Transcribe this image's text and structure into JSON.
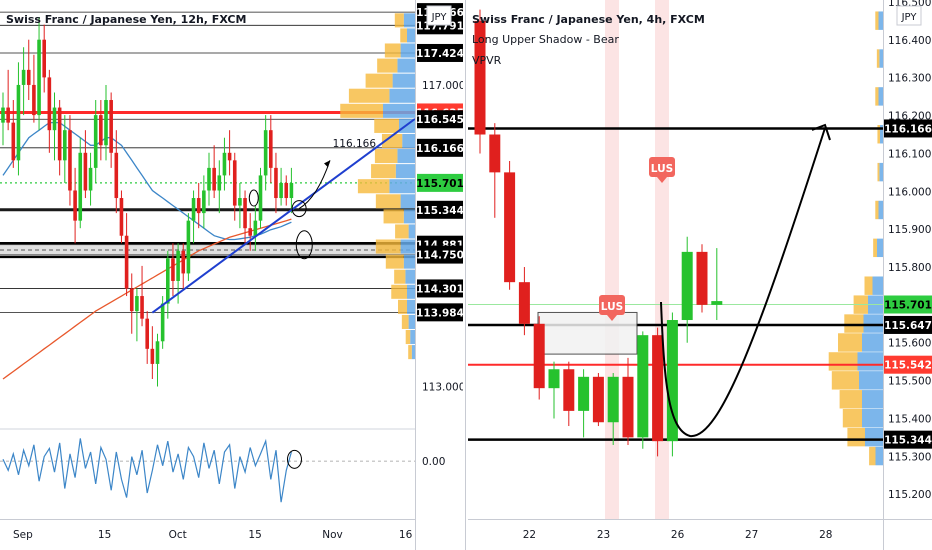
{
  "left": {
    "title": "Swiss Franc / Japanese Yen, 12h, FXCM",
    "currency": "JPY",
    "price_range": [
      112.45,
      118.1
    ],
    "osc_range": [
      -0.58,
      0.32
    ],
    "x_ticks": [
      {
        "label": "Sep",
        "i": 3
      },
      {
        "label": "15",
        "i": 22
      },
      {
        "label": "Oct",
        "i": 39
      },
      {
        "label": "15",
        "i": 57
      },
      {
        "label": "Nov",
        "i": 75
      },
      {
        "label": "16",
        "i": 92
      }
    ],
    "axis_prices": [
      "117.000",
      "113.000"
    ],
    "osc_tick": "0.00",
    "level_tags": [
      {
        "label": "117.966",
        "style": "black"
      },
      {
        "label": "117.791",
        "style": "black"
      },
      {
        "label": "117.424",
        "style": "black"
      },
      {
        "label": "116.635",
        "style": "red"
      },
      {
        "label": "116.545",
        "style": "black"
      },
      {
        "label": "116.166",
        "style": "black"
      },
      {
        "label": "115.701",
        "style": "green"
      },
      {
        "label": "115.344",
        "style": "black"
      },
      {
        "label": "114.881",
        "style": "black"
      },
      {
        "label": "114.750",
        "style": "black"
      },
      {
        "label": "114.301",
        "style": "black"
      },
      {
        "label": "113.984",
        "style": "black"
      }
    ],
    "annotation_text": "116.166"
  },
  "right": {
    "title": "Swiss Franc / Japanese Yen, 4h, FXCM",
    "indicator_1": "Long Upper Shadow - Bear",
    "indicator_2": "VPVR",
    "currency": "JPY",
    "price_range": [
      115.145,
      116.5
    ],
    "x_ticks": [
      {
        "label": "22",
        "i": 4
      },
      {
        "label": "23",
        "i": 10
      },
      {
        "label": "26",
        "i": 16
      },
      {
        "label": "27",
        "i": 22
      },
      {
        "label": "28",
        "i": 28
      }
    ],
    "axis_prices": [
      "116.500",
      "116.400",
      "116.300",
      "116.200",
      "116.100",
      "116.000",
      "115.900",
      "115.800",
      "115.600",
      "115.500",
      "115.400",
      "115.300",
      "115.200"
    ],
    "level_tags": [
      {
        "label": "116.166",
        "style": "black"
      },
      {
        "label": "115.701",
        "style": "green"
      },
      {
        "label": "115.647",
        "style": "black"
      },
      {
        "label": "115.542",
        "style": "red"
      },
      {
        "label": "115.344",
        "style": "black"
      }
    ],
    "signals": [
      {
        "label": "LUS",
        "i": 11.8
      },
      {
        "label": "LUS",
        "i": 9.8
      }
    ],
    "colors": {
      "up": "#26c22e",
      "down": "#e0201e",
      "blue_line": "#1f3fcf",
      "red_line": "#ff2a2a",
      "green_line": "#2ecc40",
      "vp_up": "#65a9e8",
      "vp_down": "#f6b93b",
      "signal": "#f2665e"
    }
  },
  "chart_data": [
    {
      "type": "candlestick",
      "title": "Swiss Franc / Japanese Yen, 12h, FXCM",
      "xlabel": "",
      "ylabel": "JPY",
      "ylim": [
        112.45,
        118.1
      ],
      "candles": [
        [
          116.5,
          116.9,
          116.2,
          116.7
        ],
        [
          116.7,
          117.2,
          116.4,
          116.5
        ],
        [
          116.5,
          116.8,
          115.9,
          116.0
        ],
        [
          116.0,
          117.3,
          115.8,
          117.0
        ],
        [
          117.0,
          117.5,
          116.6,
          117.2
        ],
        [
          117.2,
          117.6,
          116.8,
          117.0
        ],
        [
          117.0,
          117.4,
          116.5,
          116.6
        ],
        [
          116.6,
          117.9,
          116.4,
          117.6
        ],
        [
          117.6,
          117.8,
          116.9,
          117.1
        ],
        [
          117.1,
          117.2,
          116.1,
          116.4
        ],
        [
          116.4,
          116.9,
          116.0,
          116.7
        ],
        [
          116.7,
          116.8,
          115.8,
          116.0
        ],
        [
          116.0,
          116.6,
          115.7,
          116.4
        ],
        [
          116.4,
          116.6,
          115.4,
          115.6
        ],
        [
          115.6,
          115.9,
          114.9,
          115.2
        ],
        [
          115.2,
          116.3,
          115.1,
          116.1
        ],
        [
          116.1,
          116.4,
          115.5,
          115.6
        ],
        [
          115.6,
          116.1,
          115.4,
          115.9
        ],
        [
          115.9,
          116.8,
          115.7,
          116.6
        ],
        [
          116.6,
          116.8,
          116.0,
          116.2
        ],
        [
          116.2,
          117.0,
          116.0,
          116.8
        ],
        [
          116.8,
          116.9,
          115.9,
          116.1
        ],
        [
          116.1,
          116.4,
          115.3,
          115.5
        ],
        [
          115.5,
          115.6,
          114.9,
          115.0
        ],
        [
          115.0,
          115.3,
          114.2,
          114.3
        ],
        [
          114.3,
          114.5,
          113.7,
          114.0
        ],
        [
          114.0,
          114.3,
          113.6,
          114.2
        ],
        [
          114.2,
          114.6,
          113.8,
          113.9
        ],
        [
          113.9,
          114.0,
          113.3,
          113.5
        ],
        [
          113.5,
          113.8,
          113.1,
          113.3
        ],
        [
          113.3,
          113.7,
          113.0,
          113.6
        ],
        [
          113.6,
          114.2,
          113.5,
          114.1
        ],
        [
          114.1,
          114.8,
          113.9,
          114.7
        ],
        [
          114.7,
          114.9,
          114.2,
          114.4
        ],
        [
          114.4,
          114.9,
          114.1,
          114.8
        ],
        [
          114.8,
          114.9,
          114.3,
          114.5
        ],
        [
          114.5,
          115.3,
          114.4,
          115.2
        ],
        [
          115.2,
          115.6,
          114.9,
          115.5
        ],
        [
          115.5,
          115.7,
          115.1,
          115.3
        ],
        [
          115.3,
          115.8,
          115.1,
          115.6
        ],
        [
          115.6,
          116.1,
          115.4,
          115.9
        ],
        [
          115.9,
          116.2,
          115.5,
          115.6
        ],
        [
          115.6,
          116.0,
          115.3,
          115.8
        ],
        [
          115.8,
          116.3,
          115.6,
          116.1
        ],
        [
          116.1,
          116.4,
          115.8,
          116.0
        ],
        [
          116.0,
          116.1,
          115.2,
          115.4
        ],
        [
          115.4,
          115.7,
          115.1,
          115.5
        ],
        [
          115.5,
          115.6,
          114.9,
          115.1
        ],
        [
          115.1,
          115.3,
          114.8,
          115.0
        ],
        [
          115.0,
          115.4,
          114.8,
          115.2
        ],
        [
          115.2,
          115.9,
          115.1,
          115.8
        ],
        [
          115.8,
          116.6,
          115.6,
          116.4
        ],
        [
          116.4,
          116.6,
          115.7,
          115.9
        ],
        [
          115.9,
          116.1,
          115.3,
          115.5
        ],
        [
          115.5,
          115.9,
          115.4,
          115.7
        ],
        [
          115.7,
          115.8,
          115.4,
          115.5
        ],
        [
          115.5,
          115.9,
          115.3,
          115.7
        ]
      ],
      "series": [
        {
          "name": "",
          "values": [
            115.8,
            115.9,
            116.0,
            116.1,
            116.2,
            116.3,
            116.35,
            116.4,
            116.45,
            116.5,
            116.5,
            116.5,
            116.45,
            116.4,
            116.35,
            116.3,
            116.25,
            116.2,
            116.2,
            116.25,
            116.3,
            116.3,
            116.25,
            116.2,
            116.1,
            116.0,
            115.9,
            115.8,
            115.7,
            115.6,
            115.55,
            115.5,
            115.45,
            115.4,
            115.35,
            115.3,
            115.25,
            115.2,
            115.15,
            115.1,
            115.05,
            115.0,
            114.98,
            114.96,
            114.95,
            114.95,
            114.96,
            114.97,
            114.98,
            115.0,
            115.02,
            115.05,
            115.08,
            115.1,
            115.12,
            115.15,
            115.18
          ]
        },
        {
          "name": "",
          "values": [
            113.1,
            113.15,
            113.2,
            113.25,
            113.3,
            113.35,
            113.4,
            113.45,
            113.5,
            113.55,
            113.6,
            113.65,
            113.7,
            113.75,
            113.8,
            113.85,
            113.9,
            113.95,
            114.0,
            114.04,
            114.08,
            114.12,
            114.16,
            114.2,
            114.24,
            114.28,
            114.32,
            114.36,
            114.4,
            114.44,
            114.48,
            114.52,
            114.56,
            114.6,
            114.64,
            114.68,
            114.72,
            114.76,
            114.8,
            114.83,
            114.86,
            114.89,
            114.92,
            114.95,
            114.98,
            115.0,
            115.02,
            115.04,
            115.06,
            115.08,
            115.1,
            115.12,
            115.14,
            115.16,
            115.18,
            115.2,
            115.22
          ]
        },
        {
          "name": "",
          "values": [
            0.02,
            -0.1,
            0.08,
            -0.15,
            0.12,
            -0.05,
            0.18,
            -0.22,
            0.05,
            0.14,
            -0.12,
            0.2,
            -0.3,
            0.08,
            -0.18,
            0.25,
            -0.08,
            0.1,
            -0.25,
            0.15,
            0.02,
            -0.32,
            0.1,
            -0.2,
            -0.4,
            0.05,
            -0.15,
            0.12,
            -0.35,
            -0.1,
            0.18,
            -0.05,
            0.22,
            -0.12,
            0.08,
            -0.2,
            0.15,
            0.05,
            -0.18,
            0.2,
            -0.08,
            0.12,
            -0.25,
            0.1,
            0.18,
            -0.3,
            0.05,
            -0.12,
            0.15,
            -0.05,
            0.08,
            0.22,
            -0.2,
            0.12,
            -0.45,
            -0.1,
            0.1
          ]
        }
      ],
      "levels": [
        117.966,
        117.791,
        117.424,
        116.635,
        116.545,
        116.166,
        115.701,
        115.344,
        114.881,
        114.75,
        114.301,
        113.984
      ]
    },
    {
      "type": "candlestick",
      "title": "Swiss Franc / Japanese Yen, 4h, FXCM",
      "xlabel": "",
      "ylabel": "JPY",
      "ylim": [
        115.145,
        116.5
      ],
      "candles": [
        [
          116.45,
          116.48,
          116.1,
          116.15
        ],
        [
          116.15,
          116.18,
          115.93,
          116.05
        ],
        [
          116.05,
          116.08,
          115.74,
          115.76
        ],
        [
          115.76,
          115.8,
          115.62,
          115.65
        ],
        [
          115.65,
          115.67,
          115.45,
          115.48
        ],
        [
          115.48,
          115.55,
          115.4,
          115.53
        ],
        [
          115.53,
          115.55,
          115.38,
          115.42
        ],
        [
          115.42,
          115.53,
          115.35,
          115.51
        ],
        [
          115.51,
          115.52,
          115.38,
          115.39
        ],
        [
          115.39,
          115.52,
          115.33,
          115.51
        ],
        [
          115.51,
          115.56,
          115.33,
          115.35
        ],
        [
          115.35,
          115.63,
          115.32,
          115.62
        ],
        [
          115.62,
          115.64,
          115.3,
          115.34
        ],
        [
          115.34,
          115.68,
          115.3,
          115.66
        ],
        [
          115.66,
          115.88,
          115.6,
          115.84
        ],
        [
          115.84,
          115.86,
          115.68,
          115.7
        ],
        [
          115.7,
          115.85,
          115.66,
          115.71
        ]
      ],
      "levels": [
        116.166,
        115.701,
        115.647,
        115.542,
        115.344
      ]
    }
  ]
}
